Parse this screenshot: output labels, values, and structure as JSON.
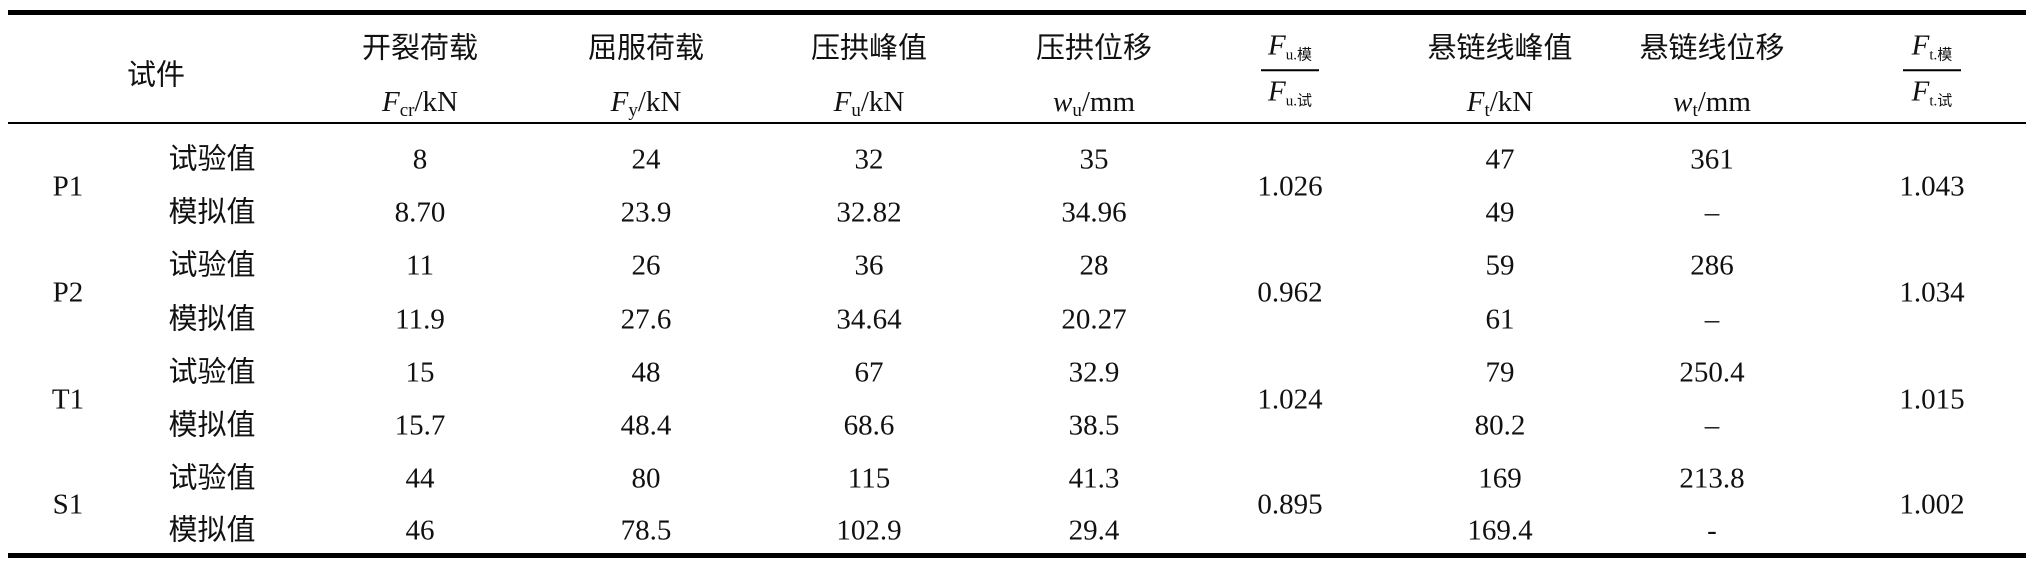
{
  "table": {
    "header": {
      "specimen": "试件",
      "columns": [
        {
          "name": "开裂荷载",
          "symbol": "F",
          "sub": "cr",
          "unit": "/kN"
        },
        {
          "name": "屈服荷载",
          "symbol": "F",
          "sub": "y",
          "unit": "/kN"
        },
        {
          "name": "压拱峰值",
          "symbol": "F",
          "sub": "u",
          "unit": "/kN"
        },
        {
          "name": "压拱位移",
          "symbol": "w",
          "sub": "u",
          "unit": "/mm"
        },
        {
          "num": {
            "symbol": "F",
            "sub": "u.模"
          },
          "den": {
            "symbol": "F",
            "sub": "u.试"
          }
        },
        {
          "name": "悬链线峰值",
          "symbol": "F",
          "sub": "t",
          "unit": "/kN"
        },
        {
          "name": "悬链线位移",
          "symbol": "w",
          "sub": "t",
          "unit": "/mm"
        },
        {
          "num": {
            "symbol": "F",
            "sub": "t.模"
          },
          "den": {
            "symbol": "F",
            "sub": "t.试"
          }
        }
      ]
    },
    "groups": [
      {
        "id": "P1",
        "ratios": [
          "1.026",
          "1.043"
        ],
        "rows": [
          {
            "label": "试验值",
            "values": [
              "8",
              "24",
              "32",
              "35",
              "47",
              "361"
            ]
          },
          {
            "label": "模拟值",
            "values": [
              "8.70",
              "23.9",
              "32.82",
              "34.96",
              "49",
              "–"
            ]
          }
        ]
      },
      {
        "id": "P2",
        "ratios": [
          "0.962",
          "1.034"
        ],
        "rows": [
          {
            "label": "试验值",
            "values": [
              "11",
              "26",
              "36",
              "28",
              "59",
              "286"
            ]
          },
          {
            "label": "模拟值",
            "values": [
              "11.9",
              "27.6",
              "34.64",
              "20.27",
              "61",
              "–"
            ]
          }
        ]
      },
      {
        "id": "T1",
        "ratios": [
          "1.024",
          "1.015"
        ],
        "rows": [
          {
            "label": "试验值",
            "values": [
              "15",
              "48",
              "67",
              "32.9",
              "79",
              "250.4"
            ]
          },
          {
            "label": "模拟值",
            "values": [
              "15.7",
              "48.4",
              "68.6",
              "38.5",
              "80.2",
              "–"
            ]
          }
        ]
      },
      {
        "id": "S1",
        "ratios": [
          "0.895",
          "1.002"
        ],
        "rows": [
          {
            "label": "试验值",
            "values": [
              "44",
              "80",
              "115",
              "41.3",
              "169",
              "213.8"
            ]
          },
          {
            "label": "模拟值",
            "values": [
              "46",
              "78.5",
              "102.9",
              "29.4",
              "169.4",
              "-"
            ]
          }
        ]
      }
    ]
  }
}
